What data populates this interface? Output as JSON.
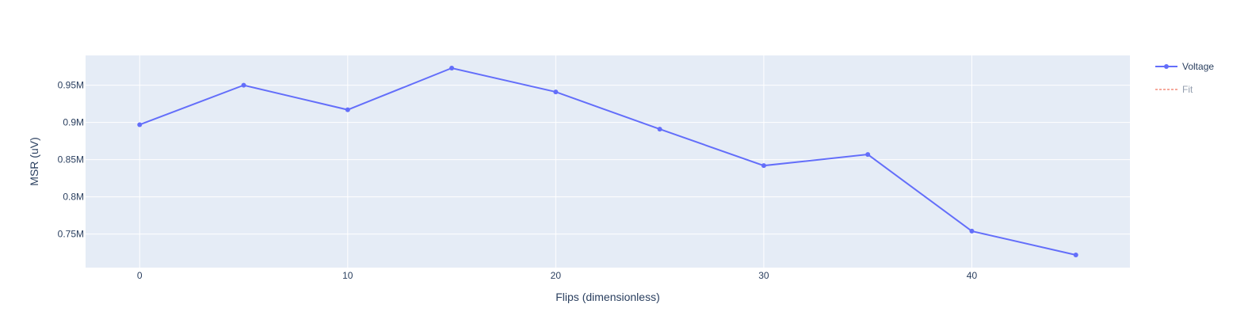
{
  "chart_data": {
    "type": "line",
    "title": "",
    "xlabel": "Flips (dimensionless)",
    "ylabel": "MSR (uV)",
    "xlim": [
      -2.6,
      47.6
    ],
    "ylim": [
      705000,
      990000
    ],
    "x_ticks": [
      0,
      10,
      20,
      30,
      40
    ],
    "x_tick_labels": [
      "0",
      "10",
      "20",
      "30",
      "40"
    ],
    "y_ticks": [
      750000,
      800000,
      850000,
      900000,
      950000
    ],
    "y_tick_labels": [
      "0.75M",
      "0.8M",
      "0.85M",
      "0.9M",
      "0.95M"
    ],
    "grid": true,
    "legend_position": "top-right",
    "series": [
      {
        "name": "Voltage",
        "color": "#636efa",
        "mode": "lines+markers",
        "x": [
          0,
          5,
          10,
          15,
          20,
          25,
          30,
          35,
          40,
          45
        ],
        "y": [
          897000,
          950000,
          917000,
          973000,
          941000,
          891000,
          842000,
          857000,
          754000,
          722000
        ]
      },
      {
        "name": "Fit",
        "color": "#ef553b",
        "mode": "lines",
        "dash": "dash",
        "legend_only": true,
        "x": [],
        "y": []
      }
    ],
    "colors": {
      "plot_background": "#e5ecf6",
      "grid": "#ffffff",
      "text": "#2a3f5f"
    }
  }
}
